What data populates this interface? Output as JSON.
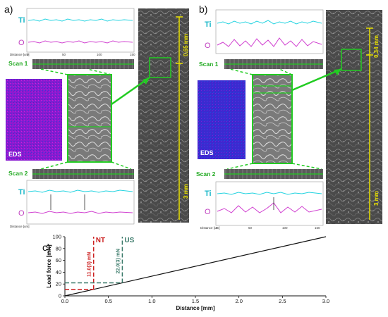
{
  "panels": {
    "a": {
      "label": "a)",
      "ti": "Ti",
      "o": "O",
      "scan1": "Scan 1",
      "scan2": "Scan 2",
      "eds": "EDS",
      "scale_top": "0.65 mm",
      "scale_bottom": "3 mm",
      "distance_label": "Distance [um]",
      "ticks": [
        "0",
        "50",
        "100",
        "150"
      ]
    },
    "b": {
      "label": "b)",
      "ti": "Ti",
      "o": "O",
      "scan1": "Scan 1",
      "scan2": "Scan 2",
      "eds": "EDS",
      "scale_top": "0.34 mm",
      "scale_bottom": "3 mm",
      "distance_label": "Distance [um]",
      "ticks": [
        "0",
        "50",
        "100",
        "150"
      ]
    },
    "c": {
      "label": "c)"
    }
  },
  "colors": {
    "ti": "#22d3e0",
    "o": "#d040d0",
    "green": "#22cc22",
    "yellow": "#e8e000",
    "nt": "#cc2020",
    "us": "#3a7a6a"
  },
  "chart_data": {
    "type": "line",
    "xlabel": "Distance [mm]",
    "ylabel": "Load force [mN]",
    "xlim": [
      0,
      3.0
    ],
    "ylim": [
      0,
      100
    ],
    "xticks": [
      "0.0",
      "0.5",
      "1.0",
      "1.5",
      "2.0",
      "2.5",
      "3.0"
    ],
    "yticks": [
      "0",
      "20",
      "40",
      "60",
      "80",
      "100"
    ],
    "grid": false,
    "series": [
      {
        "values": [
          [
            0,
            0
          ],
          [
            3.0,
            100
          ]
        ]
      }
    ],
    "annotations": [
      {
        "name": "NT",
        "value_label": "11.0(3) mN",
        "x": 0.33,
        "y": 11.0
      },
      {
        "name": "US",
        "value_label": "22.0(3) mN",
        "x": 0.66,
        "y": 22.0
      }
    ]
  }
}
